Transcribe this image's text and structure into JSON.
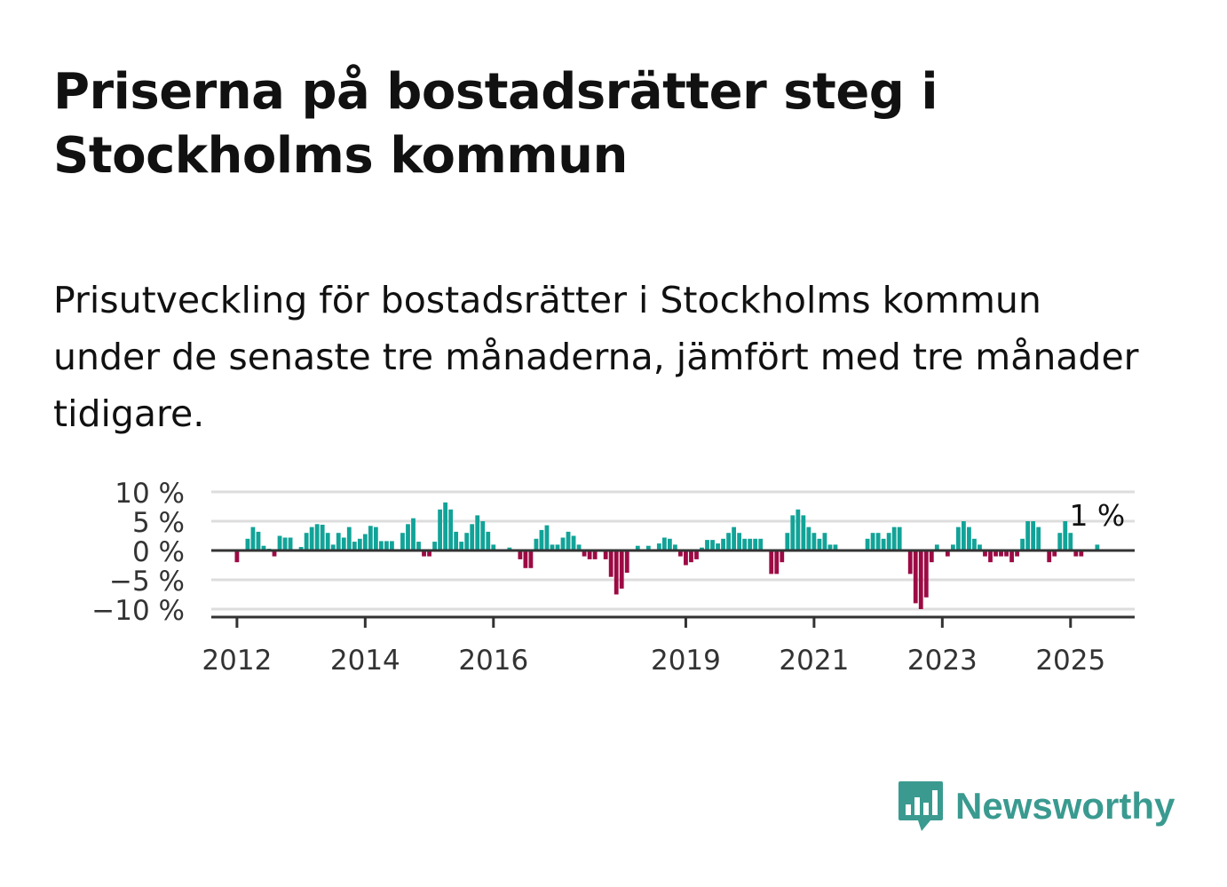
{
  "title": "Priserna på bostadsrätter steg i Stockholms kommun",
  "subtitle": "Prisutveckling för bostadsrätter i Stockholms kommun under de senaste tre månaderna, jämfört med tre månader tidigare.",
  "logo_text": "Newsworthy",
  "icon": "bar-chart-speech-bubble-icon",
  "colors": {
    "positive": "#12a398",
    "negative": "#9c0a44",
    "logo": "#3a9a90",
    "grid": "#dddddd",
    "axis": "#333333"
  },
  "chart_data": {
    "type": "bar",
    "title": "",
    "xlabel": "",
    "ylabel": "",
    "ylim": [
      -11,
      11
    ],
    "y_ticks": [
      10,
      5,
      0,
      -5,
      -10
    ],
    "y_tick_labels": [
      "10 %",
      "5 %",
      "0 %",
      "−5 %",
      "−10 %"
    ],
    "x_range": [
      2011.6,
      2026.0
    ],
    "x_ticks": [
      2012,
      2014,
      2016,
      2019,
      2021,
      2023,
      2025
    ],
    "x_tick_labels": [
      "2012",
      "2014",
      "2016",
      "2019",
      "2021",
      "2023",
      "2025"
    ],
    "grid": true,
    "annotation": {
      "text": "1 %",
      "x": "2025-06",
      "y": 1
    },
    "x": [
      "2012-01",
      "2012-02",
      "2012-03",
      "2012-04",
      "2012-05",
      "2012-06",
      "2012-07",
      "2012-08",
      "2012-09",
      "2012-10",
      "2012-11",
      "2012-12",
      "2013-01",
      "2013-02",
      "2013-03",
      "2013-04",
      "2013-05",
      "2013-06",
      "2013-07",
      "2013-08",
      "2013-09",
      "2013-10",
      "2013-11",
      "2013-12",
      "2014-01",
      "2014-02",
      "2014-03",
      "2014-04",
      "2014-05",
      "2014-06",
      "2014-07",
      "2014-08",
      "2014-09",
      "2014-10",
      "2014-11",
      "2014-12",
      "2015-01",
      "2015-02",
      "2015-03",
      "2015-04",
      "2015-05",
      "2015-06",
      "2015-07",
      "2015-08",
      "2015-09",
      "2015-10",
      "2015-11",
      "2015-12",
      "2016-01",
      "2016-02",
      "2016-03",
      "2016-04",
      "2016-05",
      "2016-06",
      "2016-07",
      "2016-08",
      "2016-09",
      "2016-10",
      "2016-11",
      "2016-12",
      "2017-01",
      "2017-02",
      "2017-03",
      "2017-04",
      "2017-05",
      "2017-06",
      "2017-07",
      "2017-08",
      "2017-09",
      "2017-10",
      "2017-11",
      "2017-12",
      "2018-01",
      "2018-02",
      "2018-03",
      "2018-04",
      "2018-05",
      "2018-06",
      "2018-07",
      "2018-08",
      "2018-09",
      "2018-10",
      "2018-11",
      "2018-12",
      "2019-01",
      "2019-02",
      "2019-03",
      "2019-04",
      "2019-05",
      "2019-06",
      "2019-07",
      "2019-08",
      "2019-09",
      "2019-10",
      "2019-11",
      "2019-12",
      "2020-01",
      "2020-02",
      "2020-03",
      "2020-04",
      "2020-05",
      "2020-06",
      "2020-07",
      "2020-08",
      "2020-09",
      "2020-10",
      "2020-11",
      "2020-12",
      "2021-01",
      "2021-02",
      "2021-03",
      "2021-04",
      "2021-05",
      "2021-06",
      "2021-07",
      "2021-08",
      "2021-09",
      "2021-10",
      "2021-11",
      "2021-12",
      "2022-01",
      "2022-02",
      "2022-03",
      "2022-04",
      "2022-05",
      "2022-06",
      "2022-07",
      "2022-08",
      "2022-09",
      "2022-10",
      "2022-11",
      "2022-12",
      "2023-01",
      "2023-02",
      "2023-03",
      "2023-04",
      "2023-05",
      "2023-06",
      "2023-07",
      "2023-08",
      "2023-09",
      "2023-10",
      "2023-11",
      "2023-12",
      "2024-01",
      "2024-02",
      "2024-03",
      "2024-04",
      "2024-05",
      "2024-06",
      "2024-07",
      "2024-08",
      "2024-09",
      "2024-10",
      "2024-11",
      "2024-12",
      "2025-01",
      "2025-02",
      "2025-03",
      "2025-04",
      "2025-05",
      "2025-06"
    ],
    "values": [
      -2,
      0,
      2,
      4,
      3.2,
      0.8,
      0.3,
      -1,
      2.5,
      2.2,
      2.2,
      0.2,
      0.6,
      3,
      4,
      4.5,
      4.4,
      3,
      1,
      3,
      2.2,
      4,
      1.5,
      2,
      2.8,
      4.2,
      4,
      1.6,
      1.6,
      1.6,
      0,
      3,
      4.5,
      5.5,
      1.5,
      -1,
      -1,
      1.5,
      7,
      8.2,
      7,
      3.2,
      1.5,
      3,
      4.5,
      6,
      5,
      3.2,
      1,
      0,
      0,
      0.5,
      0,
      -1.5,
      -3,
      -3,
      2,
      3.5,
      4.3,
      1,
      1,
      2.2,
      3.2,
      2.5,
      1,
      -1,
      -1.5,
      -1.5,
      0,
      -1.5,
      -4.5,
      -7.5,
      -6.5,
      -3.8,
      0,
      0.8,
      0,
      0.8,
      0,
      1.2,
      2.2,
      2,
      1,
      -1,
      -2.5,
      -2,
      -1.5,
      0.5,
      1.8,
      1.8,
      1.2,
      2,
      3,
      4,
      3,
      2,
      2,
      2,
      2,
      0,
      -4,
      -4,
      -2,
      3,
      6,
      7,
      6,
      4,
      3,
      2,
      3,
      1,
      1,
      0,
      0,
      0,
      0,
      0,
      2,
      3,
      3,
      2,
      3,
      4,
      4,
      0,
      -4,
      -9,
      -10,
      -8,
      -2,
      1,
      0,
      -1,
      1,
      4,
      5,
      4,
      2,
      1,
      -1,
      -2,
      -1,
      -1,
      -1,
      -2,
      -1,
      2,
      5,
      5,
      4,
      0,
      -2,
      -1,
      3,
      5,
      3,
      -1,
      -1,
      0,
      0,
      1
    ]
  }
}
